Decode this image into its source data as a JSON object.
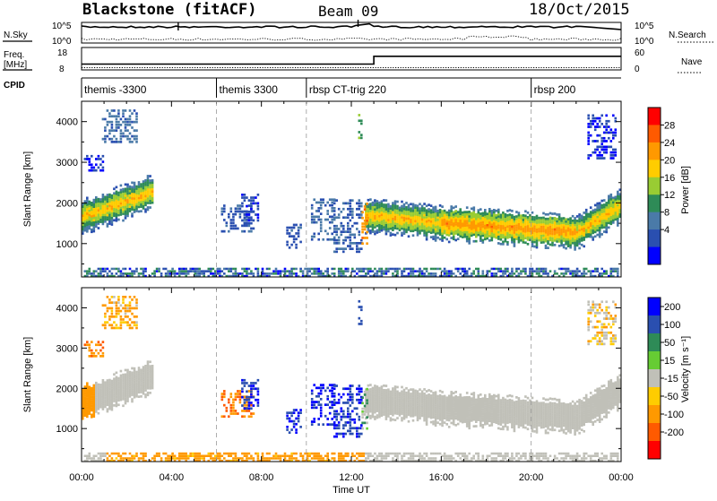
{
  "header": {
    "station": "Blackstone (fitACF)",
    "beam": "Beam 09",
    "date": "18/Oct/2015"
  },
  "panels": {
    "nsky": {
      "left_label": "N.Sky",
      "right_label": "N.Search",
      "left_ticks": [
        "10^5",
        "10^0"
      ],
      "right_ticks": [
        "10^5",
        "10^0"
      ]
    },
    "freq": {
      "left_label": "Freq.",
      "left_unit": "[MHz]",
      "right_label": "Nave",
      "left_ticks": [
        "18",
        "8"
      ],
      "right_ticks": [
        "60",
        "0"
      ]
    },
    "cpid": {
      "label": "CPID",
      "segments": [
        {
          "label": "themis -3300",
          "start": "00:00"
        },
        {
          "label": "themis 3300",
          "start": "06:00"
        },
        {
          "label": "rbsp CT-trig 220",
          "start": "10:00"
        },
        {
          "label": "rbsp 200",
          "start": "20:00"
        }
      ]
    }
  },
  "power_scale": {
    "title": "Power [dB]",
    "ticks": [
      "28",
      "24",
      "20",
      "16",
      "12",
      "8",
      "4"
    ],
    "colors": [
      "#ff0000",
      "#ff5a00",
      "#ff9900",
      "#ffcc00",
      "#99cc33",
      "#2e8b57",
      "#4a7aa8",
      "#2a4fb0",
      "#0000ff"
    ]
  },
  "velocity_scale": {
    "title": "Velocity [m s⁻¹]",
    "ticks": [
      "200",
      "100",
      "50",
      "15",
      "-15",
      "-50",
      "-100",
      "-200"
    ],
    "colors": [
      "#0000ff",
      "#2a4fb0",
      "#2e8b57",
      "#66cc33",
      "#c0c0b8",
      "#ffcc00",
      "#ff9900",
      "#ff5a00",
      "#ff0000"
    ]
  },
  "axes": {
    "ylabel": "Slant Range [km]",
    "yticks": [
      "4000",
      "3000",
      "2000",
      "1000"
    ],
    "xlabel": "Time UT",
    "xticks": [
      "00:00",
      "04:00",
      "08:00",
      "12:00",
      "16:00",
      "20:00",
      "00:00"
    ]
  },
  "chart_data": {
    "type": "heatmap",
    "title": "Blackstone (fitACF)  Beam 09  18/Oct/2015",
    "xlabel": "Time UT",
    "ylabel": "Slant Range [km]",
    "x_range_hours": [
      0,
      24
    ],
    "y_range_km": [
      180,
      4500
    ],
    "cpid_changes_hours": [
      6,
      10,
      20
    ],
    "freq_mhz": [
      {
        "start_hour": 0,
        "end_hour": 13,
        "value": 10.5
      },
      {
        "start_hour": 13,
        "end_hour": 24,
        "value": 14.5
      }
    ],
    "power_bands": [
      {
        "start_hour": 0.0,
        "end_hour": 3.2,
        "center_km_start": 1650,
        "center_km_end": 2300,
        "db": 24
      },
      {
        "start_hour": 12.6,
        "end_hour": 16.0,
        "center_km_start": 1700,
        "center_km_end": 1500,
        "db": 24
      },
      {
        "start_hour": 16.0,
        "end_hour": 22.0,
        "center_km_start": 1500,
        "center_km_end": 1280,
        "db": 26
      },
      {
        "start_hour": 22.0,
        "end_hour": 24.0,
        "center_km_start": 1280,
        "center_km_end": 1950,
        "db": 24
      }
    ],
    "velocity_regions": [
      {
        "start_hour": 0.0,
        "end_hour": 3.2,
        "velocity_ms": 0
      },
      {
        "start_hour": 6.2,
        "end_hour": 7.6,
        "velocity_ms": -70
      },
      {
        "start_hour": 10.2,
        "end_hour": 12.4,
        "velocity_ms": 150
      },
      {
        "start_hour": 12.6,
        "end_hour": 24.0,
        "velocity_ms": 0
      }
    ]
  }
}
